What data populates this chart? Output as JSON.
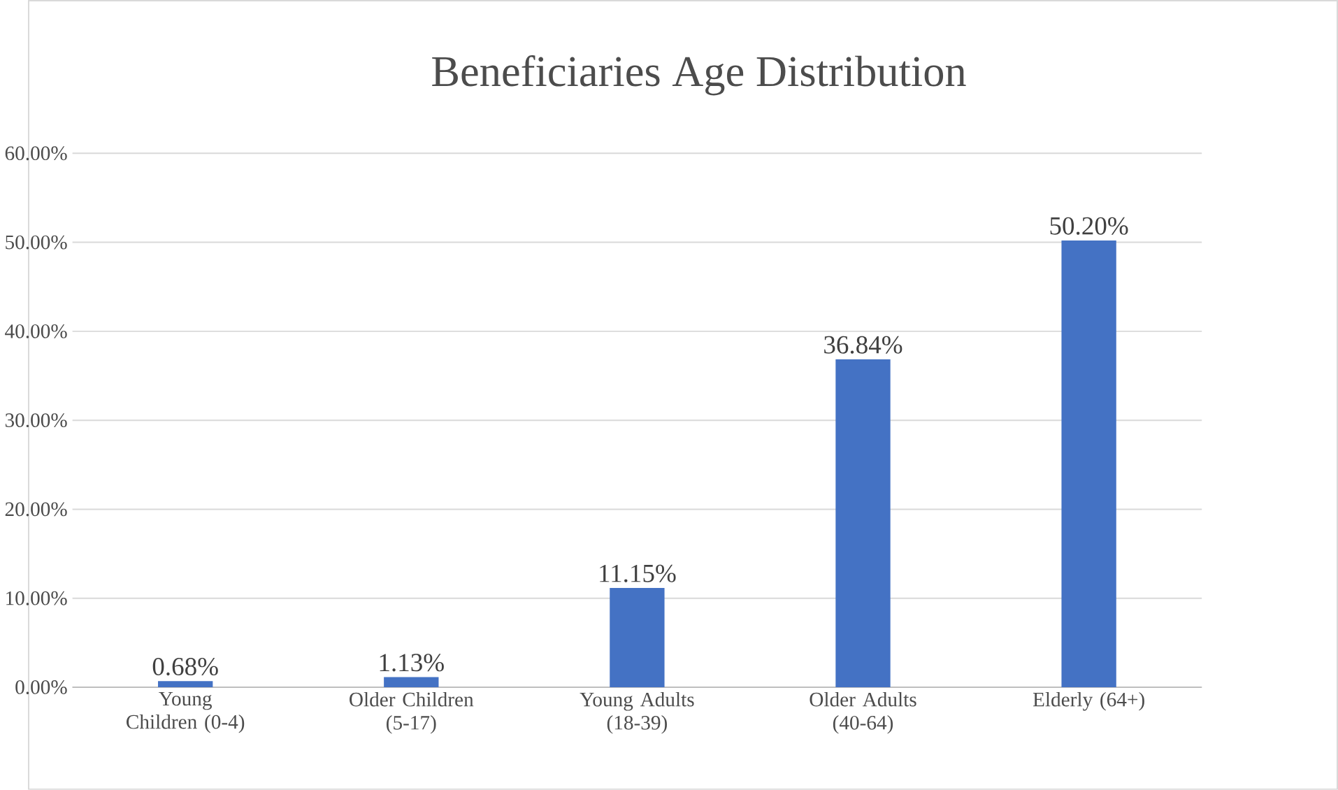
{
  "chart_data": {
    "type": "bar",
    "title": "Beneficiaries Age Distribution",
    "categories": [
      "Young Children (0-4)",
      "Older Children (5-17)",
      "Young Adults (18-39)",
      "Older Adults (40-64)",
      "Elderly (64+)"
    ],
    "values": [
      0.68,
      1.13,
      11.15,
      36.84,
      50.2
    ],
    "value_labels": [
      "0.68%",
      "1.13%",
      "11.15%",
      "36.84%",
      "50.20%"
    ],
    "color": "#4472c4",
    "ylim": [
      0,
      60
    ],
    "yticks": [
      {
        "value": 0,
        "label": "0.00%"
      },
      {
        "value": 10,
        "label": "10.00%"
      },
      {
        "value": 20,
        "label": "20.00%"
      },
      {
        "value": 30,
        "label": "30.00%"
      },
      {
        "value": 40,
        "label": "40.00%"
      },
      {
        "value": 50,
        "label": "50.00%"
      },
      {
        "value": 60,
        "label": "60.00%"
      }
    ],
    "grid": "y"
  }
}
